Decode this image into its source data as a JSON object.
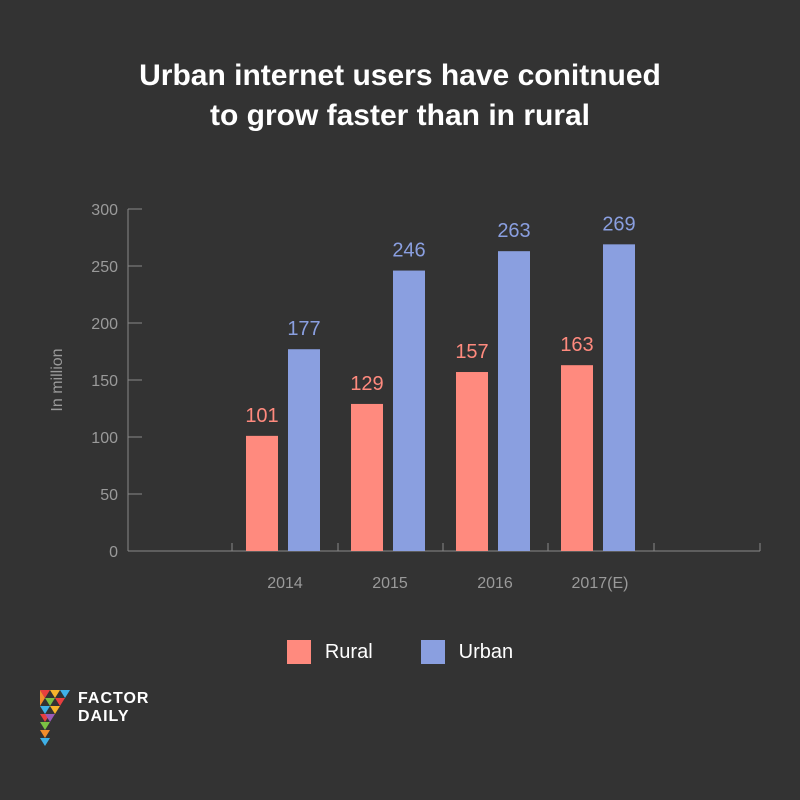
{
  "chart_data": {
    "type": "bar",
    "title_lines": [
      "Urban internet users have conitnued",
      "to grow faster than in rural"
    ],
    "ylabel": "In million",
    "xlabel": "",
    "categories": [
      "2014",
      "2015",
      "2016",
      "2017(E)"
    ],
    "yticks": [
      "0",
      "50",
      "100",
      "150",
      "200",
      "250",
      "300"
    ],
    "ylim": [
      0,
      300
    ],
    "grid": false,
    "legend_position": "bottom-center",
    "series": [
      {
        "name": "Rural",
        "color": "#FF8A7E",
        "values": [
          101,
          129,
          157,
          163
        ],
        "labels": [
          "101",
          "129",
          "157",
          "163"
        ]
      },
      {
        "name": "Urban",
        "color": "#8A9FE0",
        "values": [
          177,
          246,
          263,
          269
        ],
        "labels": [
          "177",
          "246",
          "263",
          "269"
        ]
      }
    ]
  },
  "brand": {
    "line1": "FACTOR",
    "line2": "DAILY",
    "icon": "factor-daily-logo"
  },
  "colors": {
    "background": "#333333",
    "axis": "#888888",
    "tick_text": "#9a9a9a"
  }
}
